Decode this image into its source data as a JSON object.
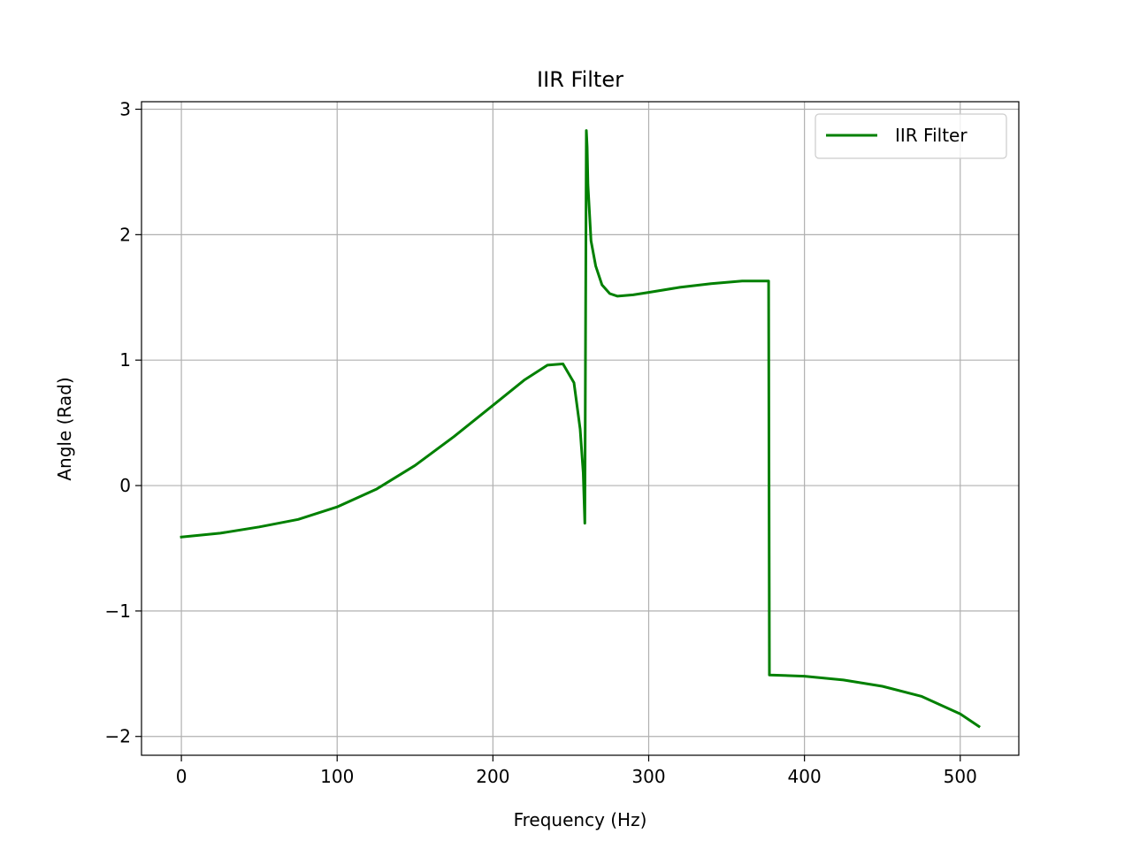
{
  "chart_data": {
    "type": "line",
    "title": "IIR Filter",
    "xlabel": "Frequency (Hz)",
    "ylabel": "Angle (Rad)",
    "xlim": [
      -25.6,
      537.6
    ],
    "ylim": [
      -2.15,
      3.06
    ],
    "xticks": [
      0,
      100,
      200,
      300,
      400,
      500
    ],
    "yticks": [
      -2,
      -1,
      0,
      1,
      2,
      3
    ],
    "xtick_labels": [
      "0",
      "100",
      "200",
      "300",
      "400",
      "500"
    ],
    "ytick_labels": [
      "−2",
      "−1",
      "0",
      "1",
      "2",
      "3"
    ],
    "grid": true,
    "legend_position": "top-right",
    "series": [
      {
        "name": "IIR Filter",
        "color": "#008000",
        "x": [
          0,
          25,
          50,
          75,
          100,
          125,
          150,
          175,
          200,
          220,
          235,
          245,
          252,
          256,
          258,
          259,
          259.5,
          260,
          260.5,
          261,
          263,
          266,
          270,
          275,
          280,
          290,
          300,
          320,
          340,
          360,
          377,
          377.5,
          378,
          400,
          425,
          450,
          475,
          500,
          512
        ],
        "y": [
          -0.41,
          -0.38,
          -0.33,
          -0.27,
          -0.17,
          -0.03,
          0.16,
          0.39,
          0.64,
          0.84,
          0.96,
          0.97,
          0.82,
          0.45,
          0.1,
          -0.3,
          1.4,
          2.83,
          2.7,
          2.4,
          1.95,
          1.75,
          1.6,
          1.53,
          1.51,
          1.52,
          1.54,
          1.58,
          1.61,
          1.63,
          1.63,
          -1.51,
          -1.51,
          -1.52,
          -1.55,
          -1.6,
          -1.68,
          -1.82,
          -1.92
        ]
      }
    ]
  }
}
